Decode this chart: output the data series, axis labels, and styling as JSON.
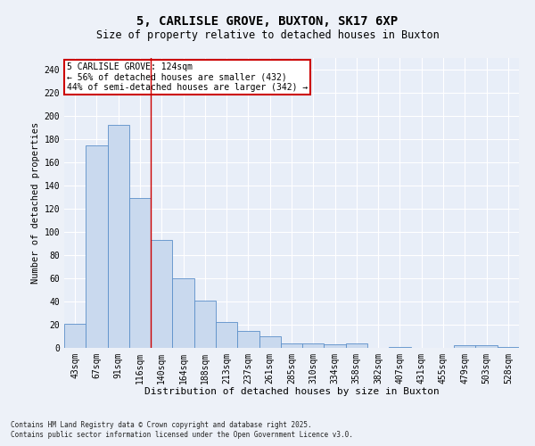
{
  "title": "5, CARLISLE GROVE, BUXTON, SK17 6XP",
  "subtitle": "Size of property relative to detached houses in Buxton",
  "xlabel": "Distribution of detached houses by size in Buxton",
  "ylabel": "Number of detached properties",
  "bar_color": "#c9d9ee",
  "bar_edge_color": "#5b8fc9",
  "background_color": "#e8eef8",
  "fig_background_color": "#edf1f8",
  "grid_color": "#ffffff",
  "categories": [
    "43sqm",
    "67sqm",
    "91sqm",
    "116sqm",
    "140sqm",
    "164sqm",
    "188sqm",
    "213sqm",
    "237sqm",
    "261sqm",
    "285sqm",
    "310sqm",
    "334sqm",
    "358sqm",
    "382sqm",
    "407sqm",
    "431sqm",
    "455sqm",
    "479sqm",
    "503sqm",
    "528sqm"
  ],
  "values": [
    21,
    175,
    192,
    129,
    93,
    60,
    41,
    22,
    15,
    10,
    4,
    4,
    3,
    4,
    0,
    1,
    0,
    0,
    2,
    2,
    1
  ],
  "property_label": "5 CARLISLE GROVE: 124sqm",
  "annotation_line1": "← 56% of detached houses are smaller (432)",
  "annotation_line2": "44% of semi-detached houses are larger (342) →",
  "vline_position": 3.5,
  "ylim": [
    0,
    250
  ],
  "yticks": [
    0,
    20,
    40,
    60,
    80,
    100,
    120,
    140,
    160,
    180,
    200,
    220,
    240
  ],
  "footer1": "Contains HM Land Registry data © Crown copyright and database right 2025.",
  "footer2": "Contains public sector information licensed under the Open Government Licence v3.0.",
  "annotation_box_color": "#ffffff",
  "annotation_border_color": "#cc0000",
  "vline_color": "#cc0000",
  "title_fontsize": 10,
  "subtitle_fontsize": 8.5,
  "ylabel_fontsize": 7.5,
  "xlabel_fontsize": 8,
  "tick_fontsize": 7,
  "footer_fontsize": 5.5,
  "ann_fontsize": 7
}
